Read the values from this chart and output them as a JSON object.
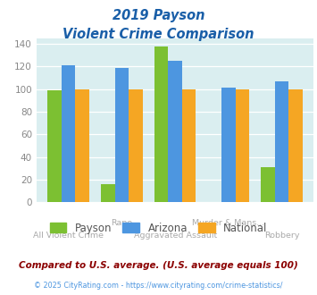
{
  "title_line1": "2019 Payson",
  "title_line2": "Violent Crime Comparison",
  "payson_values": [
    99,
    16,
    138,
    0,
    31
  ],
  "arizona_values": [
    121,
    119,
    125,
    101,
    107
  ],
  "national_values": [
    100,
    100,
    100,
    100,
    100
  ],
  "color_payson": "#7cc032",
  "color_arizona": "#4d96e0",
  "color_national": "#f5a623",
  "ylim": [
    0,
    145
  ],
  "yticks": [
    0,
    20,
    40,
    60,
    80,
    100,
    120,
    140
  ],
  "bg_color": "#daeef0",
  "legend_labels": [
    "Payson",
    "Arizona",
    "National"
  ],
  "x_top_labels": [
    "",
    "Rape",
    "",
    "Murder & Mans...",
    ""
  ],
  "x_bottom_labels": [
    "All Violent Crime",
    "",
    "Aggravated Assault",
    "",
    "Robbery"
  ],
  "footnote1": "Compared to U.S. average. (U.S. average equals 100)",
  "footnote2": "© 2025 CityRating.com - https://www.cityrating.com/crime-statistics/"
}
